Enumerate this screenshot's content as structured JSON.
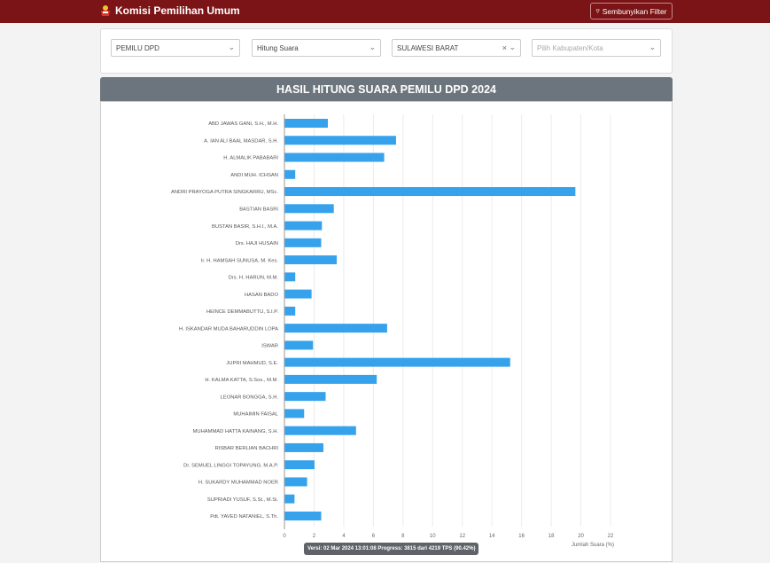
{
  "header": {
    "title": "Komisi Pemilihan Umum",
    "filter_button": "Sembunyikan Filter"
  },
  "filters": {
    "election": "PEMILU DPD",
    "mode": "Hitung Suara",
    "province": "SULAWESI BARAT",
    "regency_placeholder": "Pilih Kabupaten/Kota"
  },
  "panel_title": "HASIL HITUNG SUARA PEMILU DPD 2024",
  "tooltip": "Versi: 02 Mar 2024 13:01:08 Progress: 3815 dari 4219 TPS (90.42%)",
  "colors": {
    "header": "#7b1416",
    "bar": "#36a2eb",
    "title_bar": "#6c757d"
  },
  "chart_data": {
    "type": "bar",
    "orientation": "horizontal",
    "title": "HASIL HITUNG SUARA PEMILU DPD 2024",
    "xlabel": "Jumlah Suara (%)",
    "ylabel": "",
    "xlim": [
      0,
      22
    ],
    "xticks": [
      "0",
      "2",
      "4",
      "6",
      "8",
      "10",
      "12",
      "14",
      "16",
      "18",
      "20",
      "22"
    ],
    "grid": true,
    "categories": [
      "ABD JAWAS GANI, S.H., M.H.",
      "A. IAN ALI BAAL MASDAR, S.H.",
      "H. ALMALIK PABABARI",
      "ANDI MUH. ICHSAN",
      "ANDRI PRAYOGA PUTRA SINGKARRU, MSc.",
      "BASTIAN BASRI",
      "BUSTAN BASIR, S.H.I., M.A.",
      "Drs. HAJI HUSAIN",
      "Ir. H. HAMSAH SUNUSA, M. Kes.",
      "Drs. H. HARUN, M.M.",
      "HASAN BADO",
      "HEINCE DEMMABUTTU, S.I.P.",
      "H. ISKANDAR MUDA BAHARUDDIN LOPA",
      "ISWAR",
      "JUPRI MAHMUD, S.E.",
      "H. KALMA KATTA, S.Sos., M.M.",
      "LEONAR BONGGA, S.H.",
      "MUHAIMIN FAISAL",
      "MUHAMMAD HATTA KAINANG, S.H.",
      "RISBAR BERLIAN BACHRI",
      "Dr. SEMUEL LINGGI TOPAYUNG, M.A.P.",
      "H. SUKARDY MUHAMMAD NOER",
      "SUPRIADI YUSUF, S.St., M.Si.",
      "Pdt. YAVED NATANIEL, S.Th."
    ],
    "values": [
      2.9,
      7.5,
      6.7,
      0.7,
      19.6,
      3.3,
      2.5,
      2.45,
      3.5,
      0.7,
      1.8,
      0.7,
      6.9,
      1.9,
      15.2,
      6.2,
      2.75,
      1.3,
      4.8,
      2.6,
      2.0,
      1.5,
      0.65,
      2.45
    ]
  }
}
